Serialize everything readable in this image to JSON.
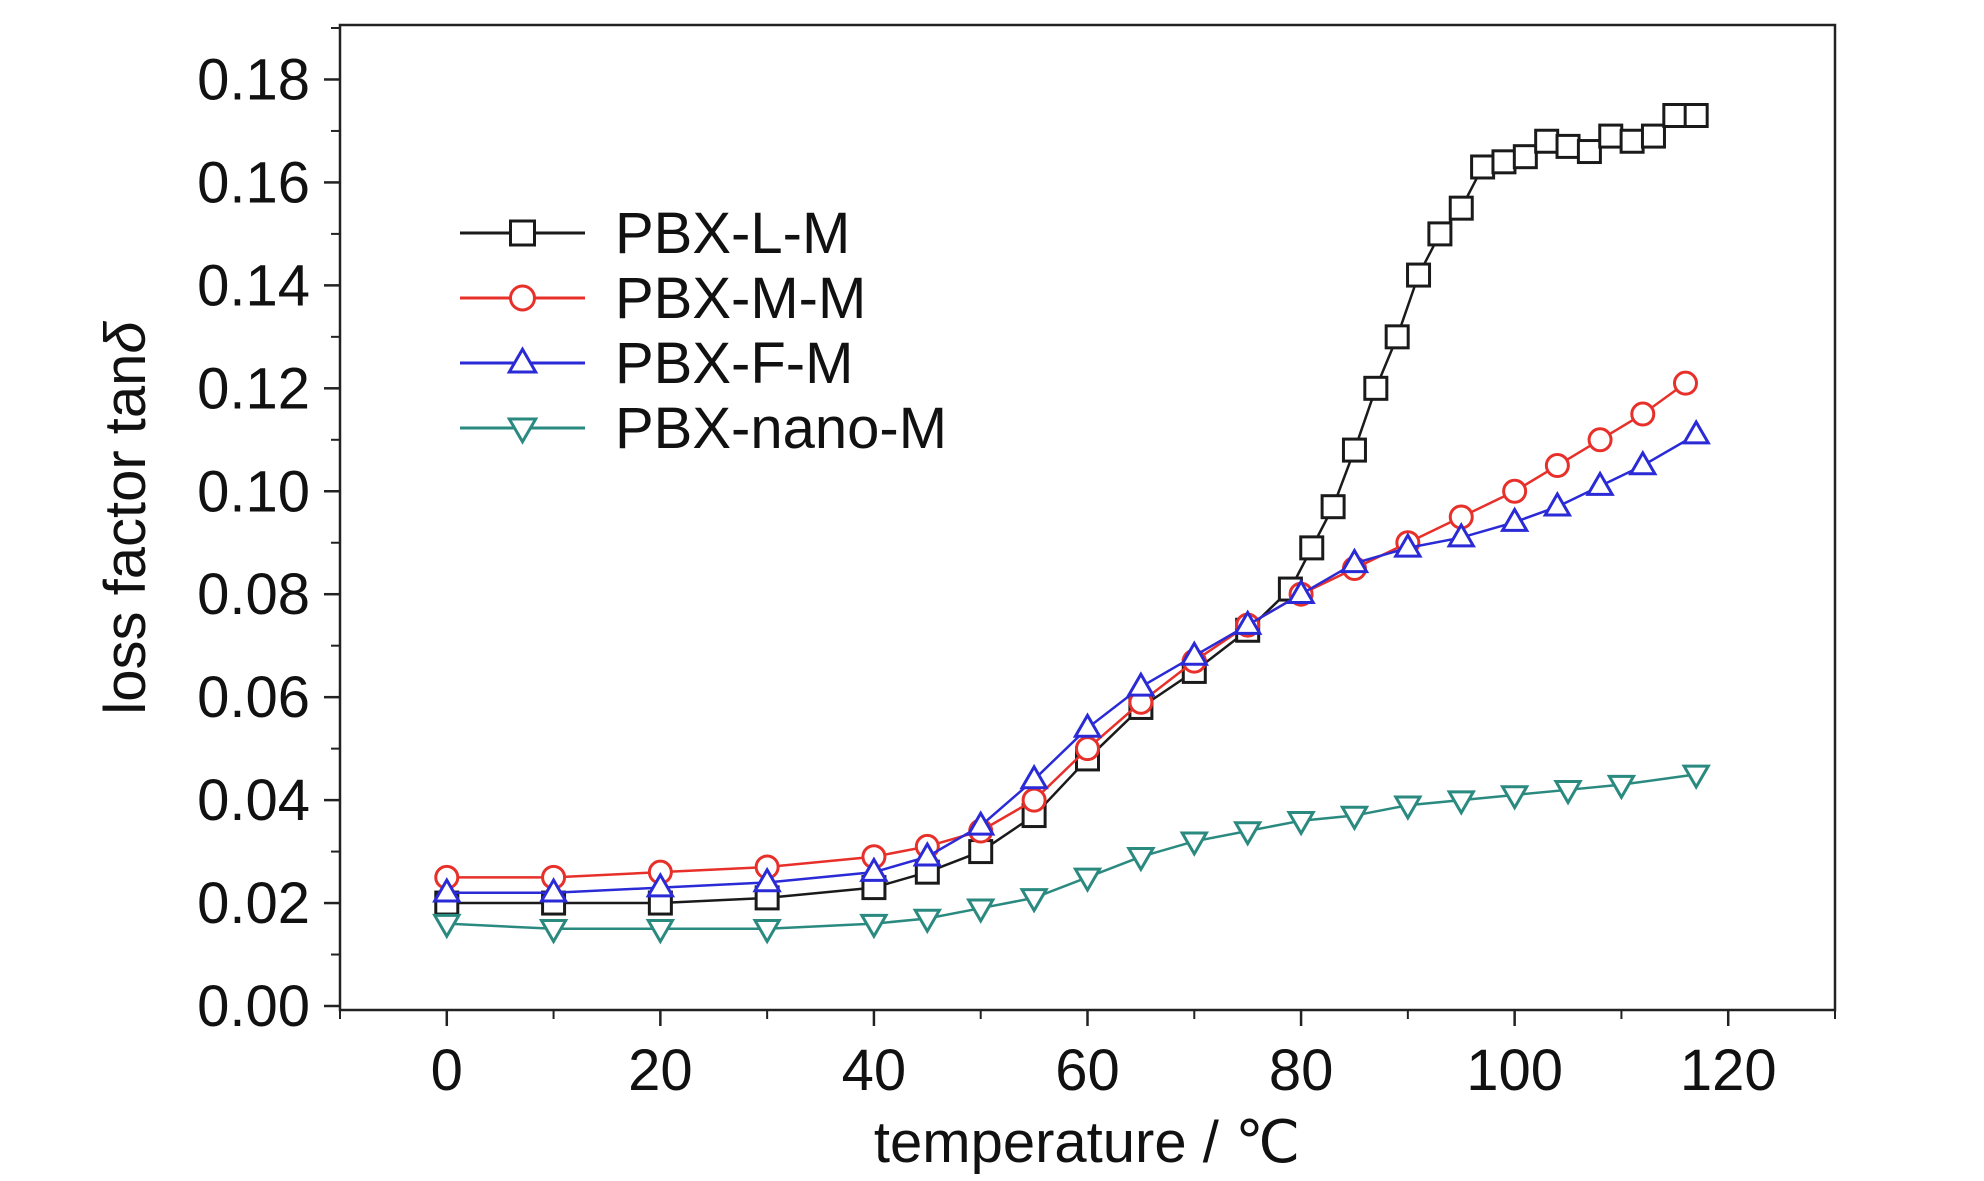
{
  "chart_data": {
    "type": "scatter",
    "xlabel": "temperature / ℃",
    "ylabel_text": "loss factor tan",
    "ylabel_symbol": "δ",
    "xlim": [
      -10,
      130
    ],
    "ylim": [
      0,
      0.19
    ],
    "x_ticks": [
      0,
      20,
      40,
      60,
      80,
      100,
      120
    ],
    "x_tick_labels": [
      "0",
      "20",
      "40",
      "60",
      "80",
      "100",
      "120"
    ],
    "y_ticks": [
      0,
      0.02,
      0.04,
      0.06,
      0.08,
      0.1,
      0.12,
      0.14,
      0.16,
      0.18
    ],
    "y_tick_labels": [
      "0.00",
      "0.02",
      "0.04",
      "0.06",
      "0.08",
      "0.10",
      "0.12",
      "0.14",
      "0.16",
      "0.18"
    ],
    "grid": false,
    "legend_position": "upper-left",
    "series": [
      {
        "name": "PBX-L-M",
        "color": "#1a1a1a",
        "marker": "square",
        "x": [
          0,
          10,
          20,
          30,
          40,
          45,
          50,
          55,
          60,
          65,
          70,
          75,
          79,
          81,
          83,
          85,
          87,
          89,
          91,
          93,
          95,
          97,
          99,
          101,
          103,
          105,
          107,
          109,
          111,
          113,
          115,
          117
        ],
        "y": [
          0.02,
          0.02,
          0.02,
          0.021,
          0.023,
          0.026,
          0.03,
          0.037,
          0.048,
          0.058,
          0.065,
          0.073,
          0.081,
          0.089,
          0.097,
          0.108,
          0.12,
          0.13,
          0.142,
          0.15,
          0.155,
          0.163,
          0.164,
          0.165,
          0.168,
          0.167,
          0.166,
          0.169,
          0.168,
          0.169,
          0.173,
          0.173
        ]
      },
      {
        "name": "PBX-M-M",
        "color": "#e8302a",
        "marker": "circle",
        "x": [
          0,
          10,
          20,
          30,
          40,
          45,
          50,
          55,
          60,
          65,
          70,
          75,
          80,
          85,
          90,
          95,
          100,
          104,
          108,
          112,
          116
        ],
        "y": [
          0.025,
          0.025,
          0.026,
          0.027,
          0.029,
          0.031,
          0.034,
          0.04,
          0.05,
          0.059,
          0.067,
          0.074,
          0.08,
          0.085,
          0.09,
          0.095,
          0.1,
          0.105,
          0.11,
          0.115,
          0.121
        ]
      },
      {
        "name": "PBX-F-M",
        "color": "#2a2ad6",
        "marker": "triangle-up",
        "x": [
          0,
          10,
          20,
          30,
          40,
          45,
          50,
          55,
          60,
          65,
          70,
          75,
          80,
          85,
          90,
          95,
          100,
          104,
          108,
          112,
          117
        ],
        "y": [
          0.022,
          0.022,
          0.023,
          0.024,
          0.026,
          0.029,
          0.035,
          0.044,
          0.054,
          0.062,
          0.068,
          0.074,
          0.08,
          0.086,
          0.089,
          0.091,
          0.094,
          0.097,
          0.101,
          0.105,
          0.111
        ]
      },
      {
        "name": "PBX-nano-M",
        "color": "#2a8a80",
        "marker": "triangle-down",
        "x": [
          0,
          10,
          20,
          30,
          40,
          45,
          50,
          55,
          60,
          65,
          70,
          75,
          80,
          85,
          90,
          95,
          100,
          105,
          110,
          117
        ],
        "y": [
          0.016,
          0.015,
          0.015,
          0.015,
          0.016,
          0.017,
          0.019,
          0.021,
          0.025,
          0.029,
          0.032,
          0.034,
          0.036,
          0.037,
          0.039,
          0.04,
          0.041,
          0.042,
          0.043,
          0.045
        ]
      }
    ]
  }
}
